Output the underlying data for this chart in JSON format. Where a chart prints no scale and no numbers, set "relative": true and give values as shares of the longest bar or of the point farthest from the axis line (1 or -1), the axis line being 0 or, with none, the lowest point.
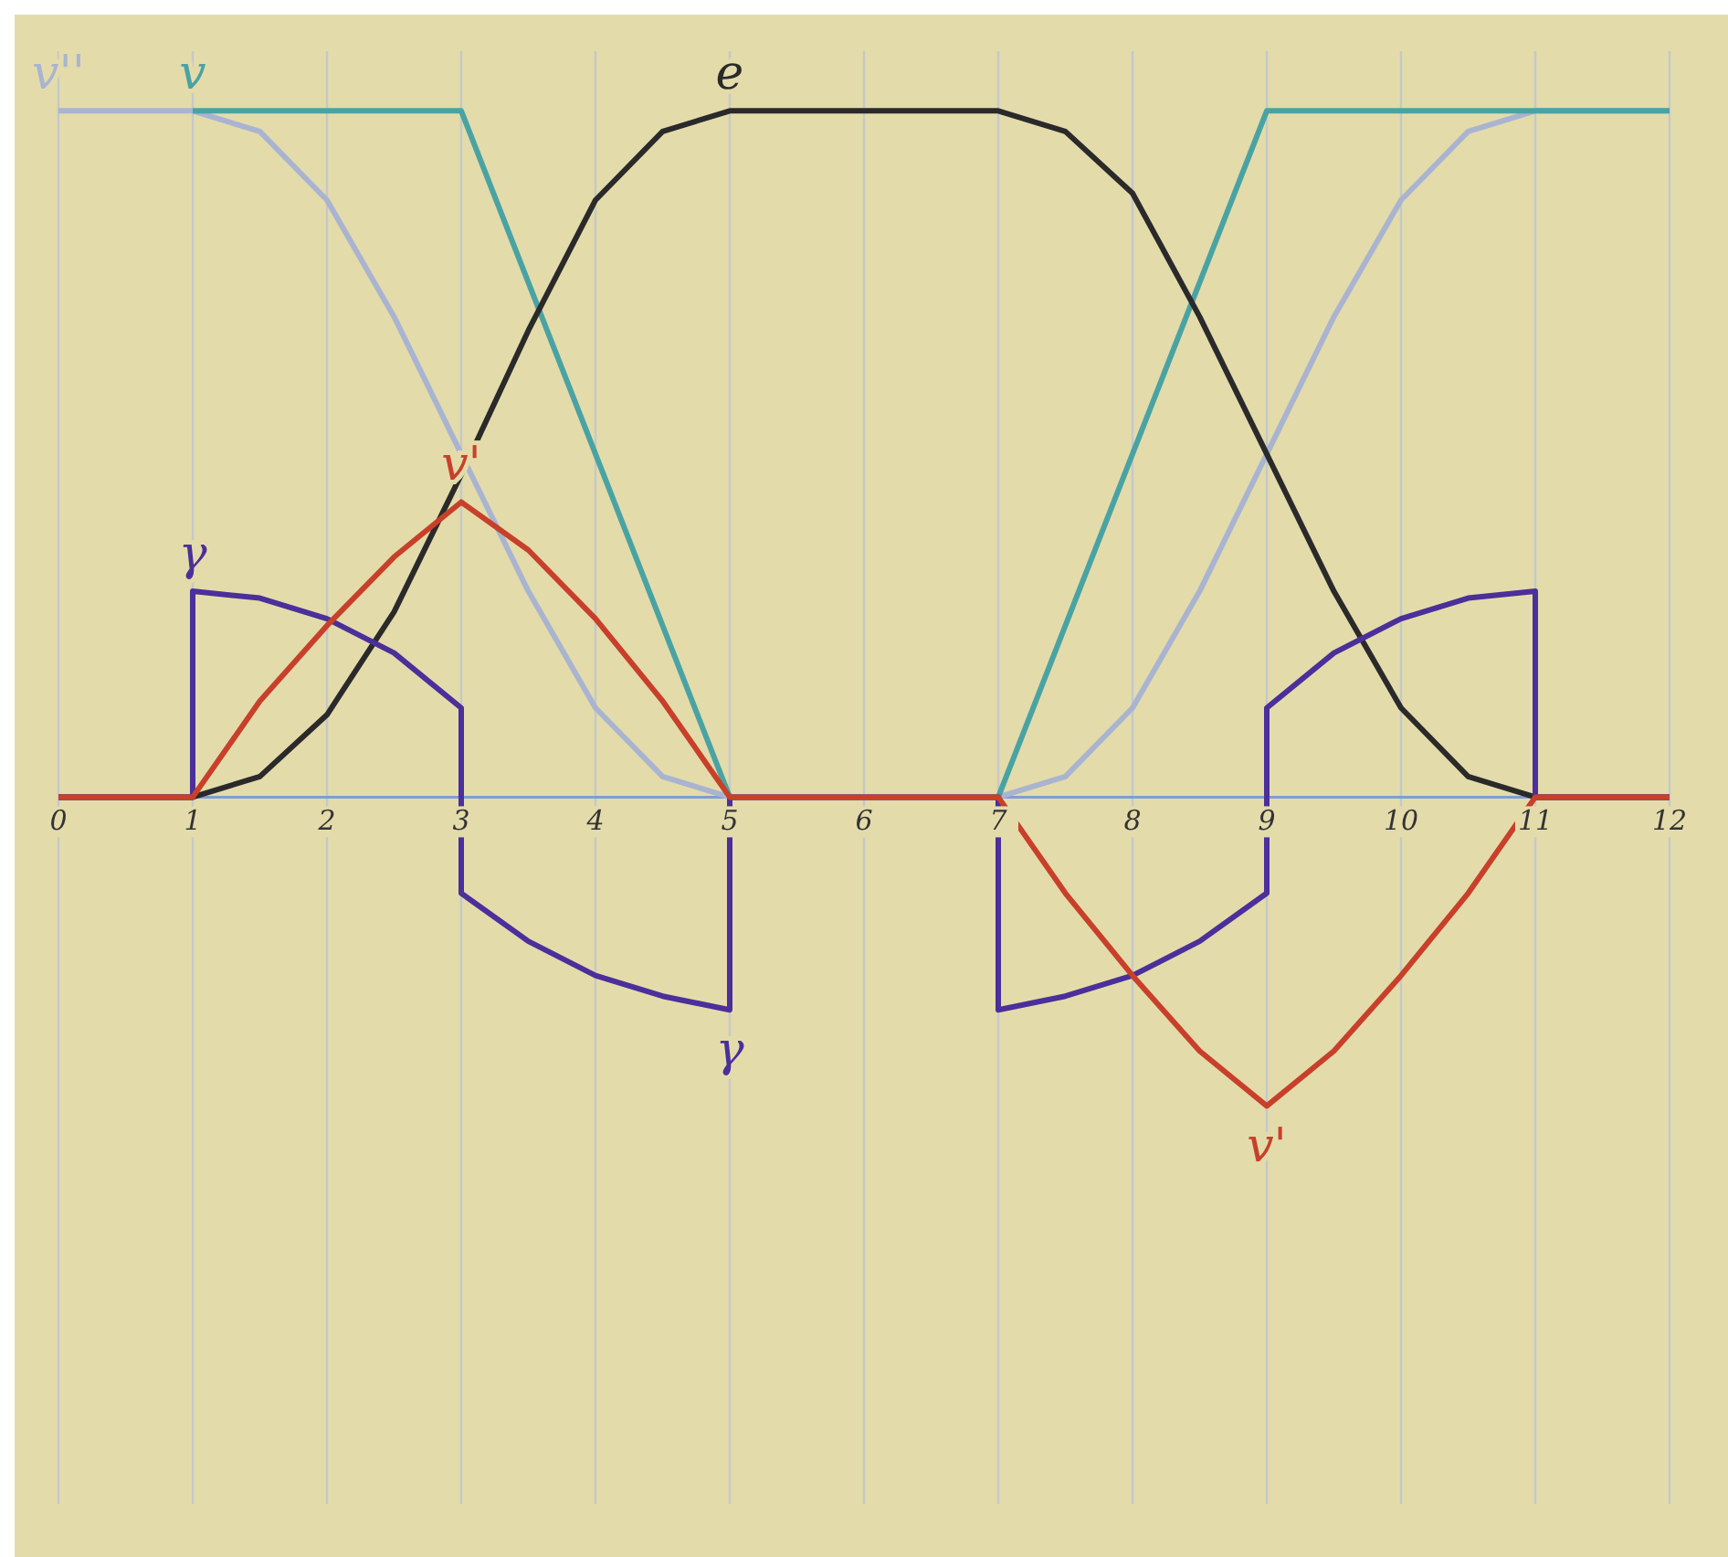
{
  "chart_data": {
    "type": "line",
    "relative": true,
    "xlim": [
      0,
      12
    ],
    "xticks": [
      0,
      1,
      2,
      3,
      4,
      5,
      6,
      7,
      8,
      9,
      10,
      11,
      12
    ],
    "grid": "x",
    "series": [
      {
        "name": "v''",
        "color": "#a9b4d0",
        "x": [
          0,
          1,
          1.5,
          2,
          2.5,
          3,
          3.5,
          4,
          4.5,
          5,
          7,
          7.5,
          8,
          8.5,
          9,
          9.5,
          10,
          10.5,
          11,
          12
        ],
        "values": [
          1,
          1,
          0.97,
          0.87,
          0.7,
          0.5,
          0.3,
          0.13,
          0.03,
          0,
          0,
          0.03,
          0.13,
          0.3,
          0.5,
          0.7,
          0.87,
          0.97,
          1,
          1
        ]
      },
      {
        "name": "v",
        "color": "#4aa3a3",
        "x": [
          1,
          3,
          5,
          7,
          9,
          12
        ],
        "values": [
          1,
          1,
          0,
          0,
          1,
          1
        ]
      },
      {
        "name": "e",
        "color": "#2a2a2a",
        "x": [
          0,
          1,
          1.5,
          2,
          2.5,
          3,
          3.5,
          4,
          4.5,
          5,
          7,
          7.5,
          8,
          8.5,
          9,
          9.5,
          10,
          10.5,
          11,
          12
        ],
        "values": [
          0,
          0,
          0.03,
          0.12,
          0.27,
          0.47,
          0.68,
          0.87,
          0.97,
          1,
          1,
          0.97,
          0.88,
          0.7,
          0.5,
          0.3,
          0.13,
          0.03,
          0,
          0
        ]
      },
      {
        "name": "γ",
        "color": "#4b2f9a",
        "x": [
          0,
          1,
          1,
          1.5,
          2,
          2.5,
          3,
          3,
          3.5,
          4,
          4.5,
          5,
          5,
          7,
          7,
          7.5,
          8,
          8.5,
          9,
          9,
          9.5,
          10,
          10.5,
          11,
          11,
          12
        ],
        "values": [
          0,
          0,
          0.3,
          0.29,
          0.26,
          0.21,
          0.13,
          -0.14,
          -0.21,
          -0.26,
          -0.29,
          -0.31,
          0,
          0,
          -0.31,
          -0.29,
          -0.26,
          -0.21,
          -0.14,
          0.13,
          0.21,
          0.26,
          0.29,
          0.3,
          0,
          0
        ]
      },
      {
        "name": "v'",
        "color": "#c8402a",
        "x": [
          0,
          1,
          1.5,
          2,
          2.5,
          3,
          3.5,
          4,
          4.5,
          5,
          7,
          7.5,
          8,
          8.5,
          9,
          9.5,
          10,
          10.5,
          11,
          12
        ],
        "values": [
          0,
          0,
          0.14,
          0.25,
          0.35,
          0.43,
          0.36,
          0.26,
          0.14,
          0,
          0,
          -0.14,
          -0.26,
          -0.37,
          -0.45,
          -0.37,
          -0.26,
          -0.14,
          0,
          0
        ]
      }
    ]
  }
}
